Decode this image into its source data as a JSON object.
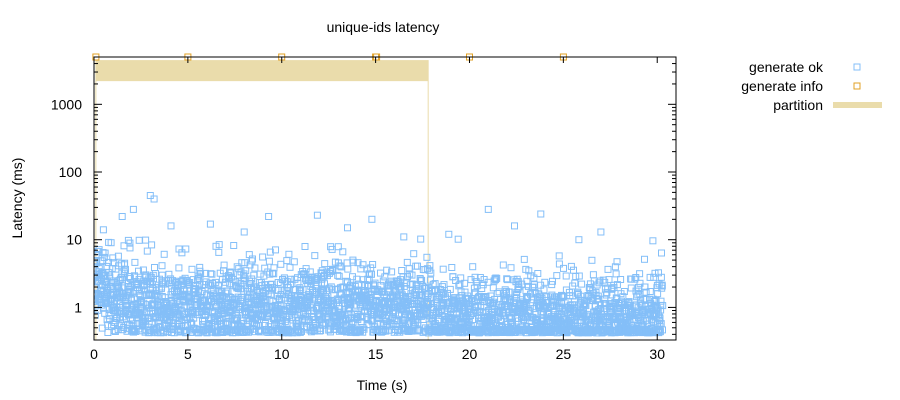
{
  "chart_data": {
    "type": "scatter",
    "title": "unique-ids latency",
    "xlabel": "Time (s)",
    "ylabel": "Latency (ms)",
    "xlim": [
      0,
      31
    ],
    "ylim": [
      0.33,
      5000
    ],
    "yscale": "log",
    "xticks": [
      0,
      5,
      10,
      15,
      20,
      25,
      30
    ],
    "yticks": [
      1,
      10,
      100,
      1000
    ],
    "grid": false,
    "legend_position": "outside-right",
    "colors": {
      "generate_ok": "#84bff8",
      "generate_info": "#e2a024",
      "partition": "#eadcab"
    },
    "legend": [
      {
        "label": "generate ok",
        "marker": "square-open",
        "color": "#84bff8"
      },
      {
        "label": "generate info",
        "marker": "square-open",
        "color": "#e2a024"
      },
      {
        "label": "partition",
        "marker": "band",
        "color": "#eadcab"
      }
    ],
    "partitions": [
      {
        "start": 0.1,
        "end": 17.8,
        "y_from": 2200,
        "y_to": 4500
      }
    ],
    "series": [
      {
        "name": "generate info",
        "marker": "square-open",
        "color": "#e2a024",
        "x": [
          0.1,
          5.0,
          10.0,
          15.0,
          15.05,
          20.0,
          25.0
        ],
        "y": [
          5000,
          5000,
          5000,
          5000,
          5000,
          5000,
          5000
        ]
      },
      {
        "name": "generate ok",
        "marker": "square-open",
        "color": "#84bff8",
        "x_range": [
          0.0,
          30.3
        ],
        "density": "dense, roughly one point per 0.01 s",
        "body_range_ms": [
          0.4,
          8
        ],
        "outliers": [
          {
            "x": 3.0,
            "y": 45
          },
          {
            "x": 3.2,
            "y": 40
          },
          {
            "x": 2.1,
            "y": 28
          },
          {
            "x": 1.5,
            "y": 22
          },
          {
            "x": 21.0,
            "y": 28
          },
          {
            "x": 23.8,
            "y": 24
          },
          {
            "x": 11.9,
            "y": 23
          },
          {
            "x": 9.3,
            "y": 22
          },
          {
            "x": 14.8,
            "y": 20
          },
          {
            "x": 0.5,
            "y": 14
          },
          {
            "x": 6.2,
            "y": 17
          },
          {
            "x": 13.5,
            "y": 15
          },
          {
            "x": 22.4,
            "y": 16
          },
          {
            "x": 27.0,
            "y": 13
          },
          {
            "x": 18.9,
            "y": 12
          },
          {
            "x": 4.1,
            "y": 16
          },
          {
            "x": 8.0,
            "y": 13
          },
          {
            "x": 16.5,
            "y": 11
          }
        ]
      }
    ]
  }
}
